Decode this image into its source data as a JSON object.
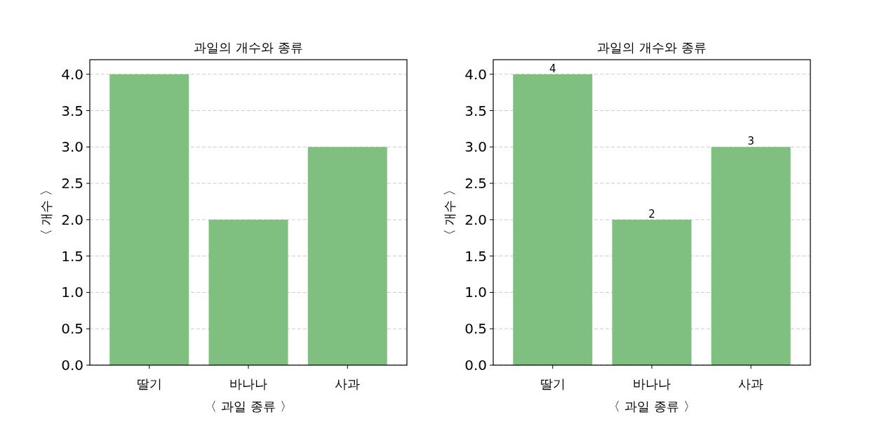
{
  "chart_data": [
    {
      "type": "bar",
      "title": "과일의 개수와 종류",
      "xlabel": "〈 과일 종류 〉",
      "ylabel": "〈 개수 〉",
      "categories": [
        "딸기",
        "바나나",
        "사과"
      ],
      "values": [
        4,
        2,
        3
      ],
      "color": "#7fbf7f",
      "ylim": [
        0,
        4.2
      ],
      "yticks": [
        {
          "value": 0,
          "label": "0.0"
        },
        {
          "value": 0.5,
          "label": "0.5"
        },
        {
          "value": 1,
          "label": "1.0"
        },
        {
          "value": 1.5,
          "label": "1.5"
        },
        {
          "value": 2,
          "label": "2.0"
        },
        {
          "value": 2.5,
          "label": "2.5"
        },
        {
          "value": 3,
          "label": "3.0"
        },
        {
          "value": 3.5,
          "label": "3.5"
        },
        {
          "value": 4,
          "label": "4.0"
        }
      ],
      "grid": "y"
    },
    {
      "type": "bar",
      "title": "과일의 개수와 종류",
      "xlabel": "〈 과일 종류 〉",
      "ylabel": "〈 개수 〉",
      "categories": [
        "딸기",
        "바나나",
        "사과"
      ],
      "values": [
        4,
        2,
        3
      ],
      "color": "#7fbf7f",
      "ylim": [
        0,
        4.2
      ],
      "yticks": [
        {
          "value": 0,
          "label": "0.0"
        },
        {
          "value": 0.5,
          "label": "0.5"
        },
        {
          "value": 1,
          "label": "1.0"
        },
        {
          "value": 1.5,
          "label": "1.5"
        },
        {
          "value": 2,
          "label": "2.0"
        },
        {
          "value": 2.5,
          "label": "2.5"
        },
        {
          "value": 3,
          "label": "3.0"
        },
        {
          "value": 3.5,
          "label": "3.5"
        },
        {
          "value": 4,
          "label": "4.0"
        }
      ],
      "grid": "y",
      "data_labels": true
    }
  ]
}
